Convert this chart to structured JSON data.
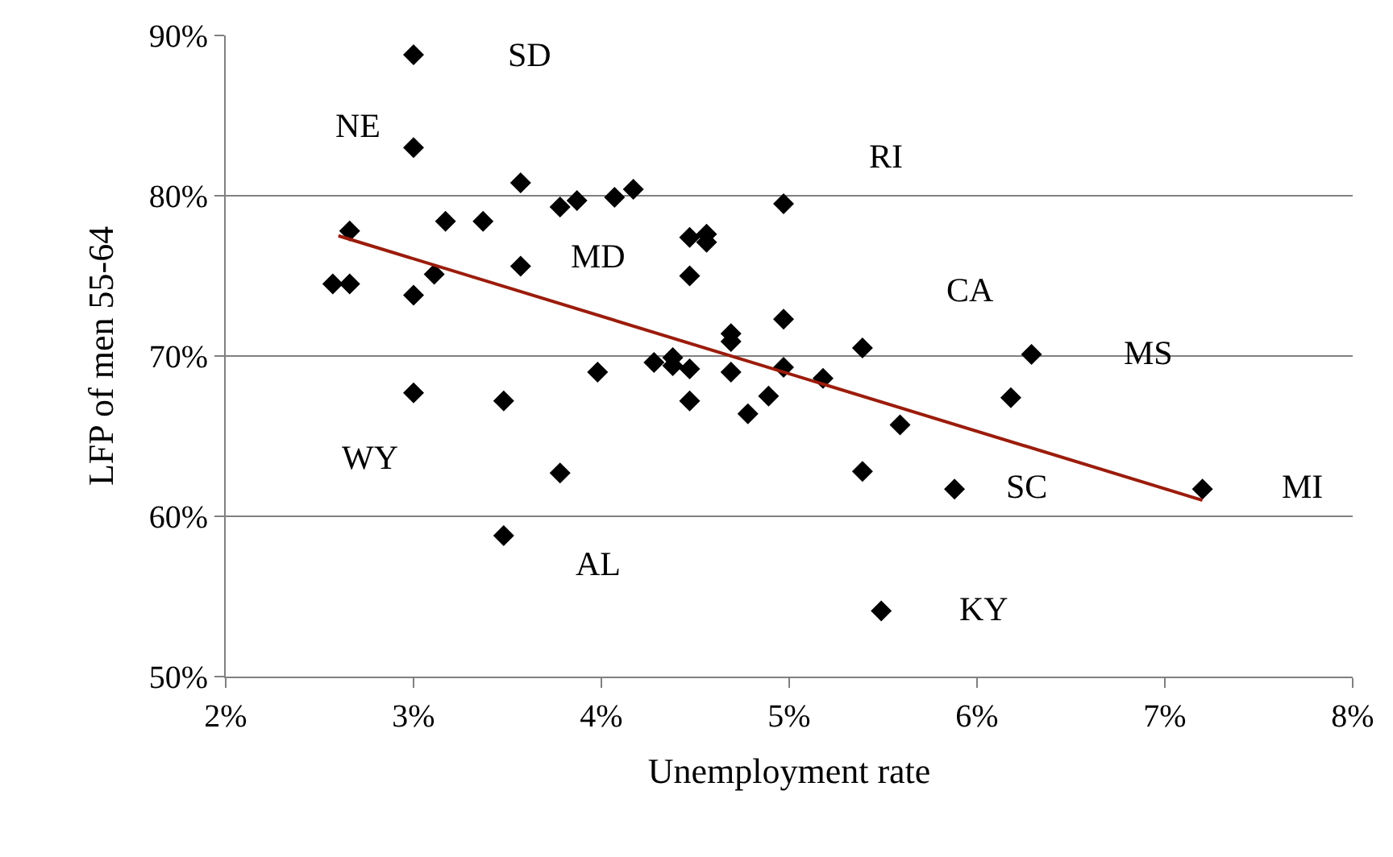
{
  "chart_data": {
    "type": "scatter",
    "xlabel": "Unemployment rate",
    "ylabel": "LFP of men 55-64",
    "series": [
      {
        "color": "#000000",
        "marker": "diamond",
        "x": [
          3.0,
          3.0,
          3.57,
          3.78,
          3.87,
          2.66,
          3.17,
          3.37,
          3.57,
          2.57,
          2.66,
          3.0,
          3.11,
          3.0,
          3.48,
          3.98,
          3.78,
          3.48,
          4.07,
          4.17,
          4.97,
          4.47,
          4.56,
          4.56,
          4.47,
          4.97,
          4.69,
          4.69,
          5.39,
          4.28,
          4.38,
          4.38,
          4.47,
          4.69,
          4.97,
          5.18,
          4.47,
          4.89,
          4.78,
          5.59,
          5.39,
          5.49,
          6.29,
          6.18,
          5.88,
          7.2
        ],
        "values": [
          88.8,
          83.0,
          80.8,
          79.3,
          79.7,
          77.8,
          78.4,
          78.4,
          75.6,
          74.5,
          74.5,
          73.8,
          75.1,
          67.7,
          67.2,
          69.0,
          62.7,
          58.8,
          79.9,
          80.4,
          79.5,
          77.4,
          77.6,
          77.1,
          75.0,
          72.3,
          71.4,
          70.9,
          70.5,
          69.6,
          69.9,
          69.4,
          69.2,
          69.0,
          69.3,
          68.6,
          67.2,
          67.5,
          66.4,
          65.7,
          62.8,
          54.1,
          70.1,
          67.4,
          61.7,
          61.7
        ]
      },
      {
        "type": "line",
        "color": "#9b1c0c",
        "marker": "none",
        "x": [
          2.6,
          7.2
        ],
        "values": [
          77.5,
          61.0
        ]
      }
    ],
    "annotations": [
      "SD",
      "NE",
      "RI",
      "MD",
      "CA",
      "MS",
      "WY",
      "SC",
      "MI",
      "AL",
      "KY"
    ],
    "xlim": [
      2,
      8
    ],
    "xticks": [
      {
        "value": 2,
        "label": "2%"
      },
      {
        "value": 3,
        "label": "3%"
      },
      {
        "value": 4,
        "label": "4%"
      },
      {
        "value": 5,
        "label": "5%"
      },
      {
        "value": 6,
        "label": "6%"
      },
      {
        "value": 7,
        "label": "7%"
      },
      {
        "value": 8,
        "label": "8%"
      }
    ],
    "ylim": [
      50,
      90
    ],
    "yticks": [
      {
        "value": 50,
        "label": "50%"
      },
      {
        "value": 60,
        "label": "60%"
      },
      {
        "value": 70,
        "label": "70%"
      },
      {
        "value": 80,
        "label": "80%"
      },
      {
        "value": 90,
        "label": "90%"
      }
    ],
    "grid": "y"
  }
}
